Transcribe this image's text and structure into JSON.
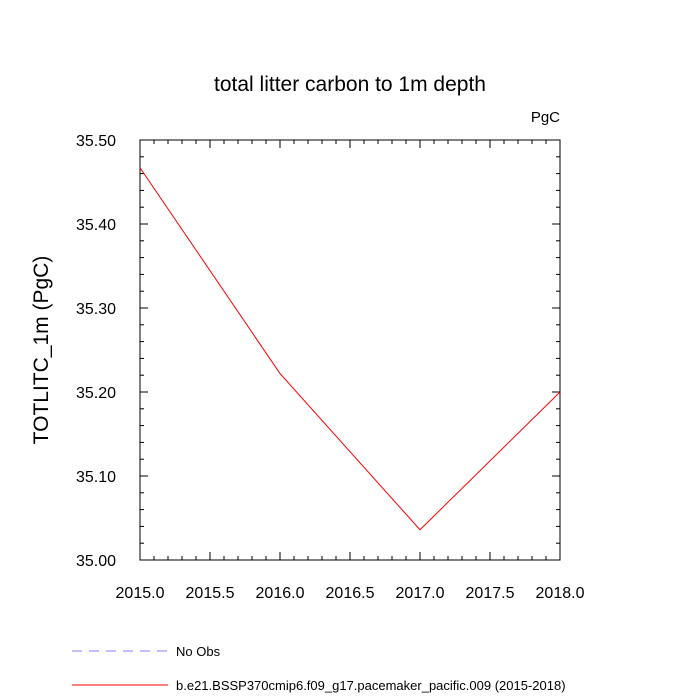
{
  "chart_data": {
    "type": "line",
    "title": "total litter carbon to 1m depth",
    "units_label": "PgC",
    "ylabel": "TOTLITC_1m  (PgC)",
    "xlabel": "",
    "xlim": [
      2015.0,
      2018.0
    ],
    "ylim": [
      35.0,
      35.5
    ],
    "x_ticks": [
      "2015.0",
      "2015.5",
      "2016.0",
      "2016.5",
      "2017.0",
      "2017.5",
      "2018.0"
    ],
    "y_ticks": [
      "35.00",
      "35.10",
      "35.20",
      "35.30",
      "35.40",
      "35.50"
    ],
    "grid": false,
    "legend_position": "bottom",
    "series": [
      {
        "name": "b.e21.BSSP370cmip6.f09_g17.pacemaker_pacific.009 (2015-2018)",
        "color": "#ff0000",
        "style": "solid",
        "x": [
          2015,
          2016,
          2017,
          2018
        ],
        "y": [
          35.467,
          35.222,
          35.036,
          35.2
        ]
      }
    ],
    "legend": [
      {
        "label": "No Obs",
        "color": "#8080ff",
        "style": "dashed"
      },
      {
        "label": "b.e21.BSSP370cmip6.f09_g17.pacemaker_pacific.009 (2015-2018)",
        "color": "#ff0000",
        "style": "solid"
      }
    ]
  }
}
